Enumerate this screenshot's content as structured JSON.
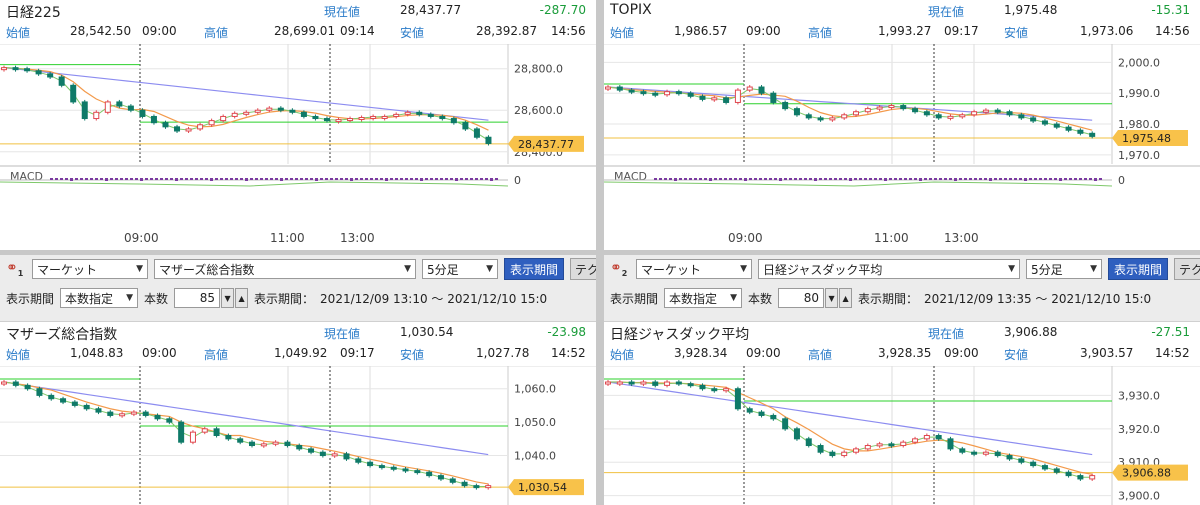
{
  "panels": [
    {
      "title": "日経225",
      "current_label": "現在値",
      "current": "28,437.77",
      "change": "-287.70",
      "open_label": "始値",
      "open": "28,542.50",
      "open_time": "09:00",
      "high_label": "高値",
      "high": "28,699.01",
      "high_time": "09:14",
      "low_label": "安値",
      "low": "28,392.87",
      "low_time": "14:56",
      "price_ticks": [
        "28,800.0",
        "28,600.0",
        "28,400.0"
      ],
      "last_price_tag": "28,437.77",
      "macd_label": "MACD",
      "macd_zero": "0",
      "time_ticks": [
        "09:00",
        "11:00",
        "13:00"
      ],
      "series_start": 28810,
      "ylim": [
        28370,
        28890
      ],
      "path": [
        28805,
        28800,
        28790,
        28775,
        28760,
        28720,
        28640,
        28560,
        28590,
        28640,
        28620,
        28600,
        28570,
        28540,
        28520,
        28500,
        28510,
        28530,
        28550,
        28570,
        28585,
        28590,
        28600,
        28610,
        28600,
        28590,
        28570,
        28560,
        28550,
        28555,
        28560,
        28565,
        28570,
        28570,
        28580,
        28590,
        28580,
        28570,
        28560,
        28540,
        28510,
        28470,
        28440
      ]
    },
    {
      "title": "TOPIX",
      "current_label": "現在値",
      "current": "1,975.48",
      "change": "-15.31",
      "open_label": "始値",
      "open": "1,986.57",
      "open_time": "09:00",
      "high_label": "高値",
      "high": "1,993.27",
      "high_time": "09:17",
      "low_label": "安値",
      "low": "1,973.06",
      "low_time": "14:56",
      "price_ticks": [
        "2,000.0",
        "1,990.0",
        "1,980.0",
        "1,970.0"
      ],
      "last_price_tag": "1,975.48",
      "macd_label": "MACD",
      "macd_zero": "0",
      "time_ticks": [
        "09:00",
        "11:00",
        "13:00"
      ],
      "series_start": 1992,
      "ylim": [
        1969,
        2004
      ],
      "path": [
        1992,
        1991,
        1990.5,
        1990,
        1989.5,
        1990.5,
        1990,
        1989,
        1988,
        1988.5,
        1987,
        1991,
        1992,
        1990,
        1987,
        1985,
        1983,
        1982,
        1981.5,
        1982,
        1983,
        1984,
        1985,
        1985.5,
        1986,
        1985,
        1984,
        1983,
        1982,
        1982.5,
        1983,
        1984,
        1984.5,
        1984,
        1983,
        1982,
        1981,
        1980,
        1979,
        1978,
        1977,
        1976
      ]
    },
    {
      "title": "マザーズ総合指数",
      "current_label": "現在値",
      "current": "1,030.54",
      "change": "-23.98",
      "open_label": "始値",
      "open": "1,048.83",
      "open_time": "09:00",
      "high_label": "高値",
      "high": "1,049.92",
      "high_time": "09:17",
      "low_label": "安値",
      "low": "1,027.78",
      "low_time": "14:52",
      "price_ticks": [
        "1,060.0",
        "1,050.0",
        "1,040.0"
      ],
      "last_price_tag": "1,030.54",
      "time_ticks": [],
      "series_start": 1062,
      "ylim": [
        1027,
        1065
      ],
      "control": {
        "link_num": "1",
        "market": "マーケット",
        "index": "マザーズ総合指数",
        "interval": "5分足",
        "period_btn": "表示期間",
        "tech_btn": "テク",
        "period_label": "表示期間",
        "period_mode": "本数指定",
        "count_label": "本数",
        "count": "85",
        "range_label": "表示期間：",
        "range": "2021/12/09 13:10 ～ 2021/12/10 15:0"
      },
      "path": [
        1062,
        1061,
        1060,
        1058,
        1057,
        1056,
        1055,
        1054,
        1053,
        1052,
        1052.5,
        1053,
        1052,
        1051,
        1050,
        1044,
        1047,
        1048,
        1046,
        1045,
        1044,
        1043,
        1043.5,
        1044,
        1043,
        1042,
        1041,
        1040,
        1040.5,
        1039,
        1038,
        1037,
        1036.5,
        1036,
        1035.5,
        1035,
        1034,
        1033,
        1032,
        1031,
        1030.5,
        1031
      ]
    },
    {
      "title": "日経ジャスダック平均",
      "current_label": "現在値",
      "current": "3,906.88",
      "change": "-27.51",
      "open_label": "始値",
      "open": "3,928.34",
      "open_time": "09:00",
      "high_label": "高値",
      "high": "3,928.35",
      "high_time": "09:00",
      "low_label": "安値",
      "low": "3,903.57",
      "low_time": "14:52",
      "price_ticks": [
        "3,930.0",
        "3,920.0",
        "3,910.0",
        "3,900.0"
      ],
      "last_price_tag": "3,906.88",
      "time_ticks": [],
      "series_start": 3934,
      "ylim": [
        3899,
        3937
      ],
      "control": {
        "link_num": "2",
        "market": "マーケット",
        "index": "日経ジャスダック平均",
        "interval": "5分足",
        "period_btn": "表示期間",
        "tech_btn": "テク",
        "period_label": "表示期間",
        "period_mode": "本数指定",
        "count_label": "本数",
        "count": "80",
        "range_label": "表示期間：",
        "range": "2021/12/09 13:35 ～ 2021/12/10 15:0"
      },
      "path": [
        3934,
        3934,
        3933.5,
        3934,
        3933,
        3934,
        3933.5,
        3933,
        3932,
        3931.5,
        3932,
        3926,
        3925,
        3924,
        3923,
        3920,
        3917,
        3915,
        3913,
        3912,
        3913,
        3914,
        3915,
        3915.5,
        3915,
        3916,
        3917,
        3918,
        3917,
        3914,
        3913,
        3912.5,
        3913,
        3912,
        3911,
        3910,
        3909,
        3908,
        3907,
        3906,
        3905,
        3906
      ]
    }
  ],
  "colors": {
    "up_candle": "#e0484f",
    "down_candle": "#0f7a68",
    "ma_fast": "#f39a4b",
    "ma_mid": "#7ec86a",
    "ma_slow": "#8c8cf0",
    "open_line": "#2bd02b",
    "price_line": "#f0c040",
    "tag_bg": "#f8c24a",
    "macd_bar": "#7a3aa0"
  }
}
